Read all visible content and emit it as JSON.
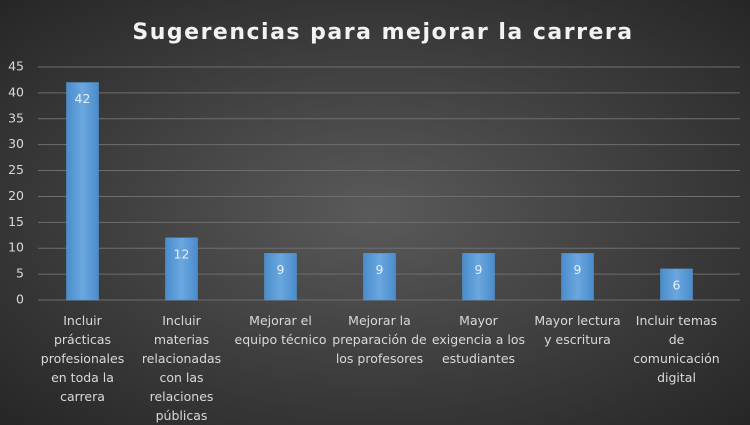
{
  "chart_data": {
    "type": "bar",
    "title": "Sugerencias para mejorar la carrera",
    "categories": [
      "Incluir prácticas profesionales en toda la carrera",
      "Incluir materias relacionadas con las relaciones públicas",
      "Mejorar el equipo técnico",
      "Mejorar la preparación de los profesores",
      "Mayor exigencia a los estudiantes",
      "Mayor lectura y escritura",
      "Incluir temas de comunicación digital"
    ],
    "values": [
      42,
      12,
      9,
      9,
      9,
      9,
      6
    ],
    "color": "#5b9bd5",
    "ylim": [
      0,
      45
    ],
    "yticks": [
      0,
      5,
      10,
      15,
      20,
      25,
      30,
      35,
      40,
      45
    ],
    "grid": true
  }
}
